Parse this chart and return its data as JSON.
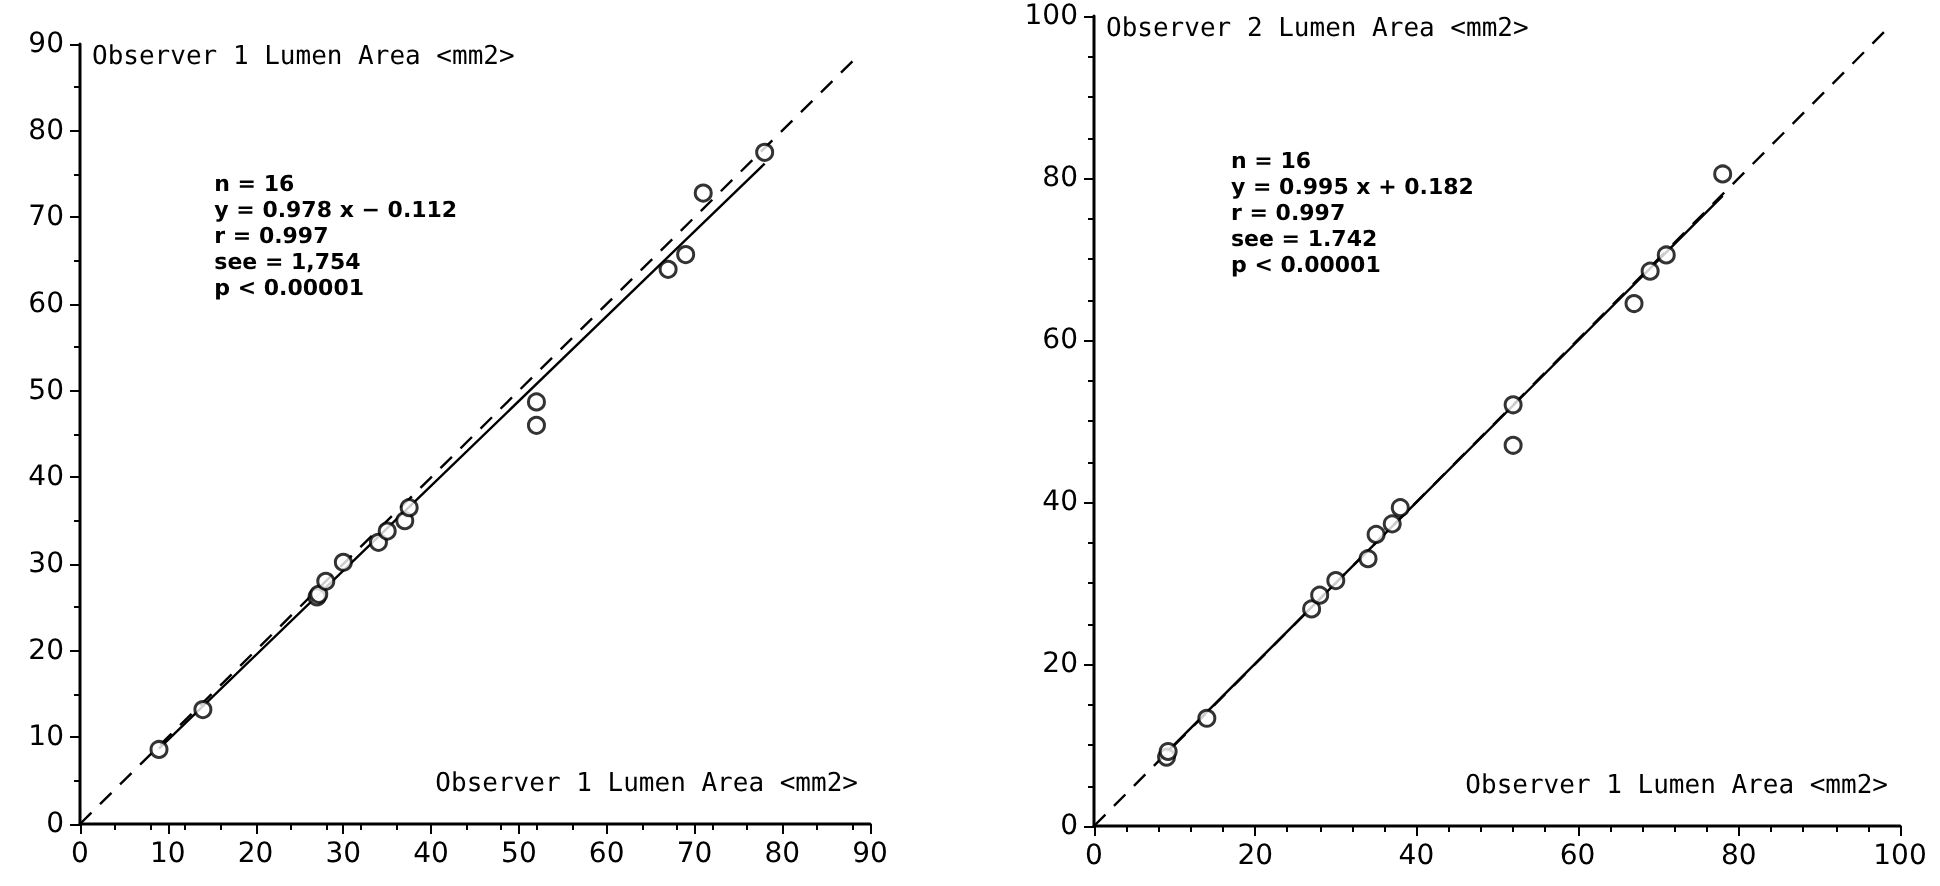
{
  "chart_data": [
    {
      "type": "scatter",
      "xlabel": "Observer 1 Lumen Area <mm2>",
      "ylabel": "Observer 1 Lumen Area <mm2>",
      "xlim": [
        0,
        90
      ],
      "ylim": [
        0,
        90
      ],
      "xticks": [
        0,
        10,
        20,
        30,
        40,
        50,
        60,
        70,
        80,
        90
      ],
      "yticks": [
        0,
        10,
        20,
        30,
        40,
        50,
        60,
        70,
        80,
        90
      ],
      "grid": false,
      "marker": "circle",
      "annotations": [
        "n = 16",
        "y = 0.978 x − 0.112",
        "r = 0.997",
        "see = 1,754",
        "p < 0.00001"
      ],
      "series": [
        {
          "color": "#000000",
          "x": [
            9,
            14,
            27,
            27.2,
            28,
            30,
            34,
            35,
            37,
            37.5,
            52,
            52,
            67,
            69,
            71,
            78
          ],
          "values": [
            8.6,
            13.2,
            26.2,
            26.5,
            28,
            30.2,
            32.5,
            33.8,
            35,
            36.5,
            48.7,
            46,
            64,
            65.7,
            72.8,
            77.5
          ]
        },
        {
          "type": "line",
          "color": "#000000",
          "marker": "none",
          "line_style": "solid",
          "x": [
            9,
            78
          ],
          "values": [
            8.7,
            76.2
          ]
        },
        {
          "type": "line",
          "color": "#000000",
          "marker": "none",
          "line_style": "dashed",
          "x": [
            0,
            88
          ],
          "values": [
            0,
            88
          ]
        }
      ]
    },
    {
      "type": "scatter",
      "xlabel": "Observer 1 Lumen Area <mm2>",
      "ylabel": "Observer 2 Lumen Area <mm2>",
      "xlim": [
        0,
        100
      ],
      "ylim": [
        0,
        100
      ],
      "xticks": [
        0,
        20,
        40,
        60,
        80,
        100
      ],
      "yticks": [
        0,
        20,
        40,
        60,
        80,
        100
      ],
      "grid": false,
      "marker": "circle",
      "annotations": [
        "n = 16",
        "y = 0.995 x + 0.182",
        "r = 0.997",
        "see = 1.742",
        "p < 0.00001"
      ],
      "series": [
        {
          "color": "#000000",
          "x": [
            9,
            9.2,
            14,
            27,
            28,
            30,
            34,
            35,
            37,
            38,
            52,
            52,
            67,
            69,
            71,
            78
          ],
          "values": [
            8.5,
            9.2,
            13.3,
            26.8,
            28.5,
            30.3,
            33,
            36,
            37.3,
            39.3,
            52,
            47,
            64.5,
            68.5,
            70.5,
            80.5
          ]
        },
        {
          "type": "line",
          "color": "#000000",
          "marker": "none",
          "line_style": "solid",
          "x": [
            9,
            78
          ],
          "values": [
            9.1,
            77.8
          ]
        },
        {
          "type": "line",
          "color": "#000000",
          "marker": "none",
          "line_style": "dashed",
          "x": [
            0,
            98
          ],
          "values": [
            0,
            98
          ]
        }
      ]
    }
  ]
}
